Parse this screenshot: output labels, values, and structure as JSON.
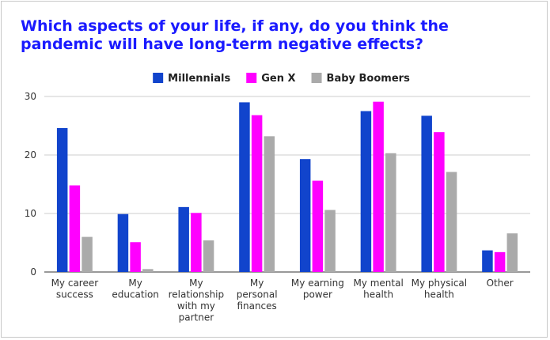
{
  "chart_data": {
    "type": "bar",
    "title": "Which aspects of your life, if any, do you think the pandemic will have long-term negative effects?",
    "xlabel": "",
    "ylabel": "",
    "ylim": [
      0,
      30
    ],
    "yticks": [
      0,
      10,
      20,
      30
    ],
    "grid": true,
    "legend_position": "top",
    "categories": [
      [
        "My career",
        "success"
      ],
      [
        "My",
        "education"
      ],
      [
        "My",
        "relationship",
        "with my",
        "partner"
      ],
      [
        "My",
        "personal",
        "finances"
      ],
      [
        "My earning",
        "power"
      ],
      [
        "My mental",
        "health"
      ],
      [
        "My physical",
        "health"
      ],
      [
        "Other"
      ]
    ],
    "series": [
      {
        "name": "Millennials",
        "color": "#1144cc",
        "values": [
          24.6,
          9.9,
          11.1,
          29.0,
          19.3,
          27.5,
          26.7,
          3.7
        ]
      },
      {
        "name": "Gen X",
        "color": "#ff00ff",
        "values": [
          14.8,
          5.1,
          10.1,
          26.8,
          15.6,
          29.1,
          23.9,
          3.4
        ]
      },
      {
        "name": "Baby Boomers",
        "color": "#aaaaaa",
        "values": [
          6.0,
          0.5,
          5.4,
          23.2,
          10.6,
          20.3,
          17.1,
          6.6
        ]
      }
    ]
  }
}
